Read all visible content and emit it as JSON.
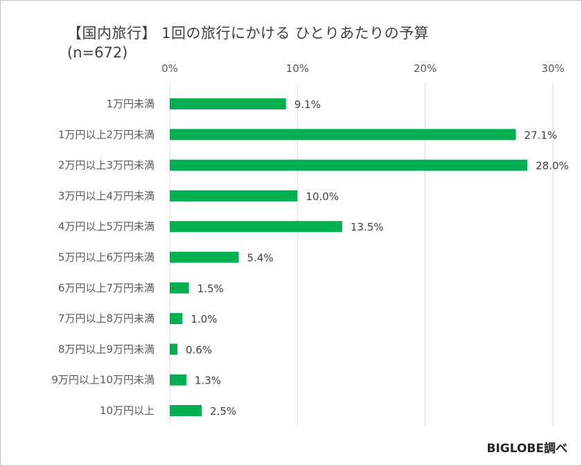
{
  "chart_data": {
    "type": "bar",
    "orientation": "horizontal",
    "title": "【国内旅行】 1回の旅行にかける ひとりあたりの予算",
    "subtitle": "(n=672)",
    "categories": [
      "1万円未満",
      "1万円以上2万円未満",
      "2万円以上3万円未満",
      "3万円以上4万円未満",
      "4万円以上5万円未満",
      "5万円以上6万円未満",
      "6万円以上7万円未満",
      "7万円以上8万円未満",
      "8万円以上9万円未満",
      "9万円以上10万円未満",
      "10万円以上"
    ],
    "values": [
      9.1,
      27.1,
      28.0,
      10.0,
      13.5,
      5.4,
      1.5,
      1.0,
      0.6,
      1.3,
      2.5
    ],
    "value_labels": [
      "9.1%",
      "27.1%",
      "28.0%",
      "10.0%",
      "13.5%",
      "5.4%",
      "1.5%",
      "1.0%",
      "0.6%",
      "1.3%",
      "2.5%"
    ],
    "xlim": [
      0,
      30
    ],
    "x_ticks": [
      0,
      10,
      20,
      30
    ],
    "x_tick_labels": [
      "0%",
      "10%",
      "20%",
      "30%"
    ],
    "x_axis_position": "top",
    "grid": true,
    "bar_color": "#00b050",
    "source_note": "BIGLOBE調べ"
  }
}
